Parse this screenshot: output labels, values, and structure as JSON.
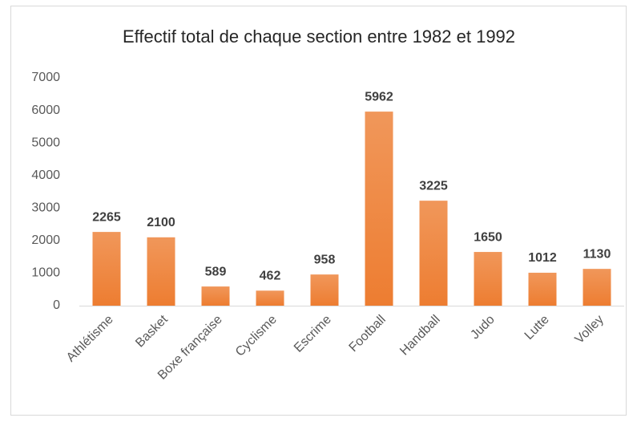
{
  "chart_data": {
    "type": "bar",
    "title": "Effectif total de chaque section entre 1982 et 1992",
    "categories": [
      "Athlétisme",
      "Basket",
      "Boxe française",
      "Cyclisme",
      "Escrime",
      "Football",
      "Handball",
      "Judo",
      "Lutte",
      "Volley"
    ],
    "values": [
      2265,
      2100,
      589,
      462,
      958,
      5962,
      3225,
      1650,
      1012,
      1130
    ],
    "color": "#ed7d31",
    "ylim": [
      0,
      7000
    ],
    "yticks": [
      0,
      1000,
      2000,
      3000,
      4000,
      5000,
      6000,
      7000
    ],
    "grid": false
  }
}
